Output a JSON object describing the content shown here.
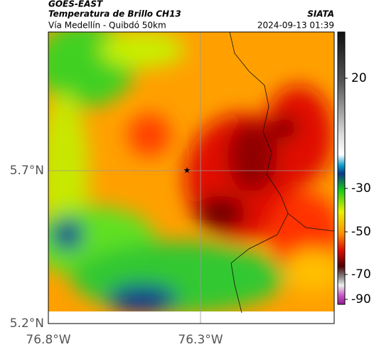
{
  "header": {
    "title": "GOES-EAST",
    "subtitle": "Temperatura de Brillo CH13",
    "source": "SIATA",
    "region": "Vía Medellín - Quibdó 50km",
    "timestamp": "2024-09-13 01:39"
  },
  "axes": {
    "lat_labels": [
      "5.7°N",
      "5.2°N"
    ],
    "lon_labels": [
      "76.8°W",
      "76.3°W"
    ]
  },
  "colorbar": {
    "ticks": [
      20,
      -30,
      -50,
      -70,
      -90
    ]
  }
}
